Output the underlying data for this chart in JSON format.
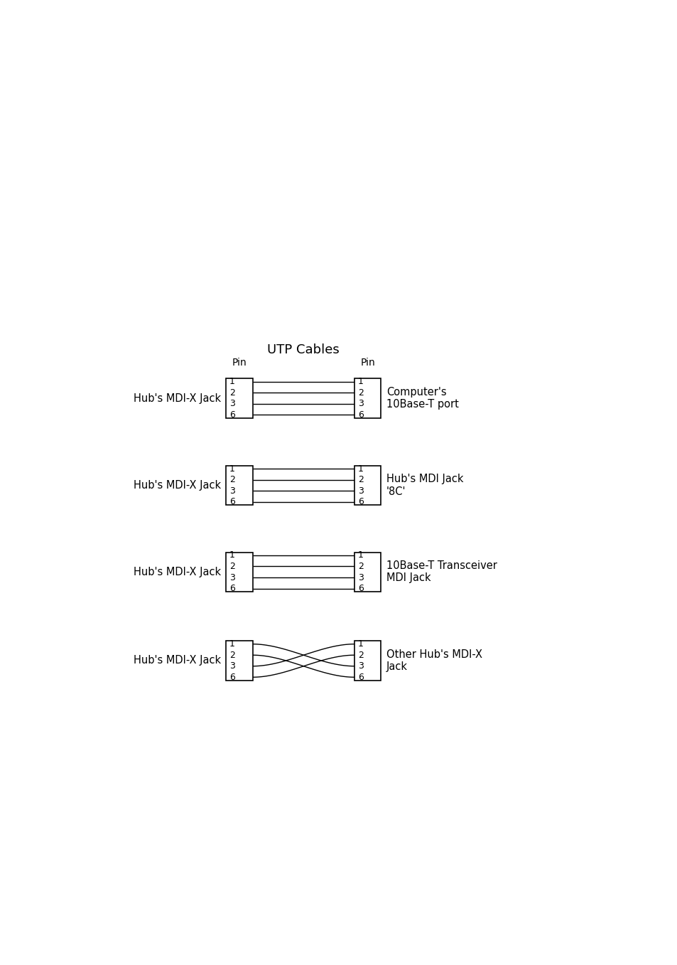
{
  "title": "UTP Cables",
  "background_color": "#ffffff",
  "pin_label": "Pin",
  "diagrams": [
    {
      "left_label": "Hub's MDI-X Jack",
      "right_label": "Computer's\n10Base-T port",
      "crossed": false
    },
    {
      "left_label": "Hub's MDI-X Jack",
      "right_label": "Hub's MDI Jack\n'8C'",
      "crossed": false
    },
    {
      "left_label": "Hub's MDI-X Jack",
      "right_label": "10Base-T Transceiver\nMDI Jack",
      "crossed": false
    },
    {
      "left_label": "Hub's MDI-X Jack",
      "right_label": "Other Hub's MDI-X\nJack",
      "crossed": true
    }
  ],
  "pin_numbers": [
    "1",
    "2",
    "3",
    "6"
  ],
  "title_fontsize": 13,
  "label_fontsize": 10.5,
  "pin_label_fontsize": 10,
  "pin_num_fontsize": 9
}
